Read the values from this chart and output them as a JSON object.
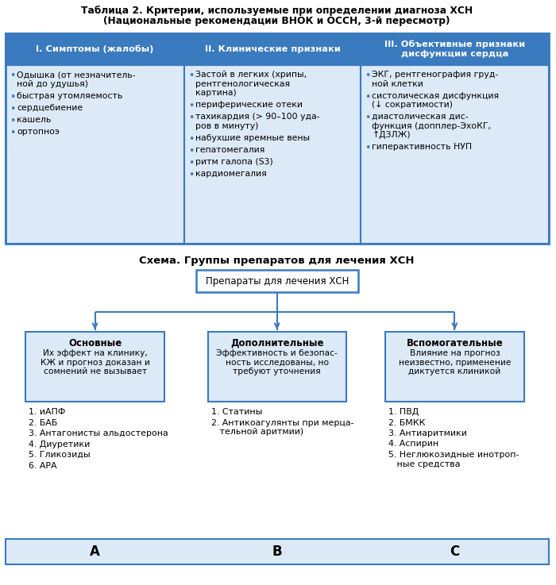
{
  "title_line1": "Таблица 2. Критерии, используемые при определении диагноза ХСН",
  "title_line2": "(Национальные рекомендации ВНОК и ОССН, 3-й пересмотр)",
  "header_color": "#3a7abf",
  "header_text_color": "#ffffff",
  "cell_bg_color": "#dce9f7",
  "table_border_color": "#3a7abf",
  "col_headers": [
    "I. Симптомы (жалобы)",
    "II. Клинические признаки",
    "III. Объективные признаки\nдисфункции сердца"
  ],
  "col1_items": [
    "Одышка (от незначитель-\nной до удушья)",
    "быстрая утомляемость",
    "сердцебиение",
    "кашель",
    "ортопноэ"
  ],
  "col2_items": [
    "Застой в легких (хрипы,\nрентгенологическая\nкартина)",
    "периферические отеки",
    "тахикардия (> 90–100 уда-\nров в минуту)",
    "набухшие яремные вены",
    "гепатомегалия",
    "ритм галопа (S3)",
    "кардиомегалия"
  ],
  "col3_items": [
    "ЭКГ, рентгенография груд-\nной клетки",
    "систолическая дисфункция\n(↓ сократимости)",
    "диастолическая дис-\nфункция (допплер-ЭхоКГ,\n↑ДЗЛЖ)",
    "гиперактивность НУП"
  ],
  "schema_title": "Схема. Группы препаратов для лечения ХСН",
  "top_box_text": "Препараты для лечения ХСН",
  "top_box_bg": "#ffffff",
  "top_box_border": "#3a7abf",
  "sub_box_bg": "#dce9f7",
  "sub_box_border": "#3a7abf",
  "arrow_color": "#3a7abf",
  "col_A_header": "Основные",
  "col_A_desc": "Их эффект на клинику,\nКЖ и прогноз доказан и\nсомнений не вызывает",
  "col_A_items": [
    "1. иАПФ",
    "2. БАБ",
    "3. Антагонисты альдостерона",
    "4. Диуретики",
    "5. Гликозиды",
    "6. АРА"
  ],
  "col_A_label": "A",
  "col_B_header": "Дополнительные",
  "col_B_desc": "Эффективность и безопас-\nность исследованы, но\nтребуют уточнения",
  "col_B_items": [
    "1. Статины",
    "2. Антикоагулянты при мерца-\n   тельной аритмии)"
  ],
  "col_B_label": "B",
  "col_C_header": "Вспомогательные",
  "col_C_desc": "Влияние на прогноз\nнеизвестно, применение\nдиктуется клиникой",
  "col_C_items": [
    "1. ПВД",
    "2. БМКК",
    "3. Антиаритмики",
    "4. Аспирин",
    "5. Неглюкозидные инотроп-\n   ные средства"
  ],
  "col_C_label": "C",
  "bg_color": "#ffffff",
  "bullet_color": "#3a7abf",
  "bottom_bar_color": "#3a7abf"
}
